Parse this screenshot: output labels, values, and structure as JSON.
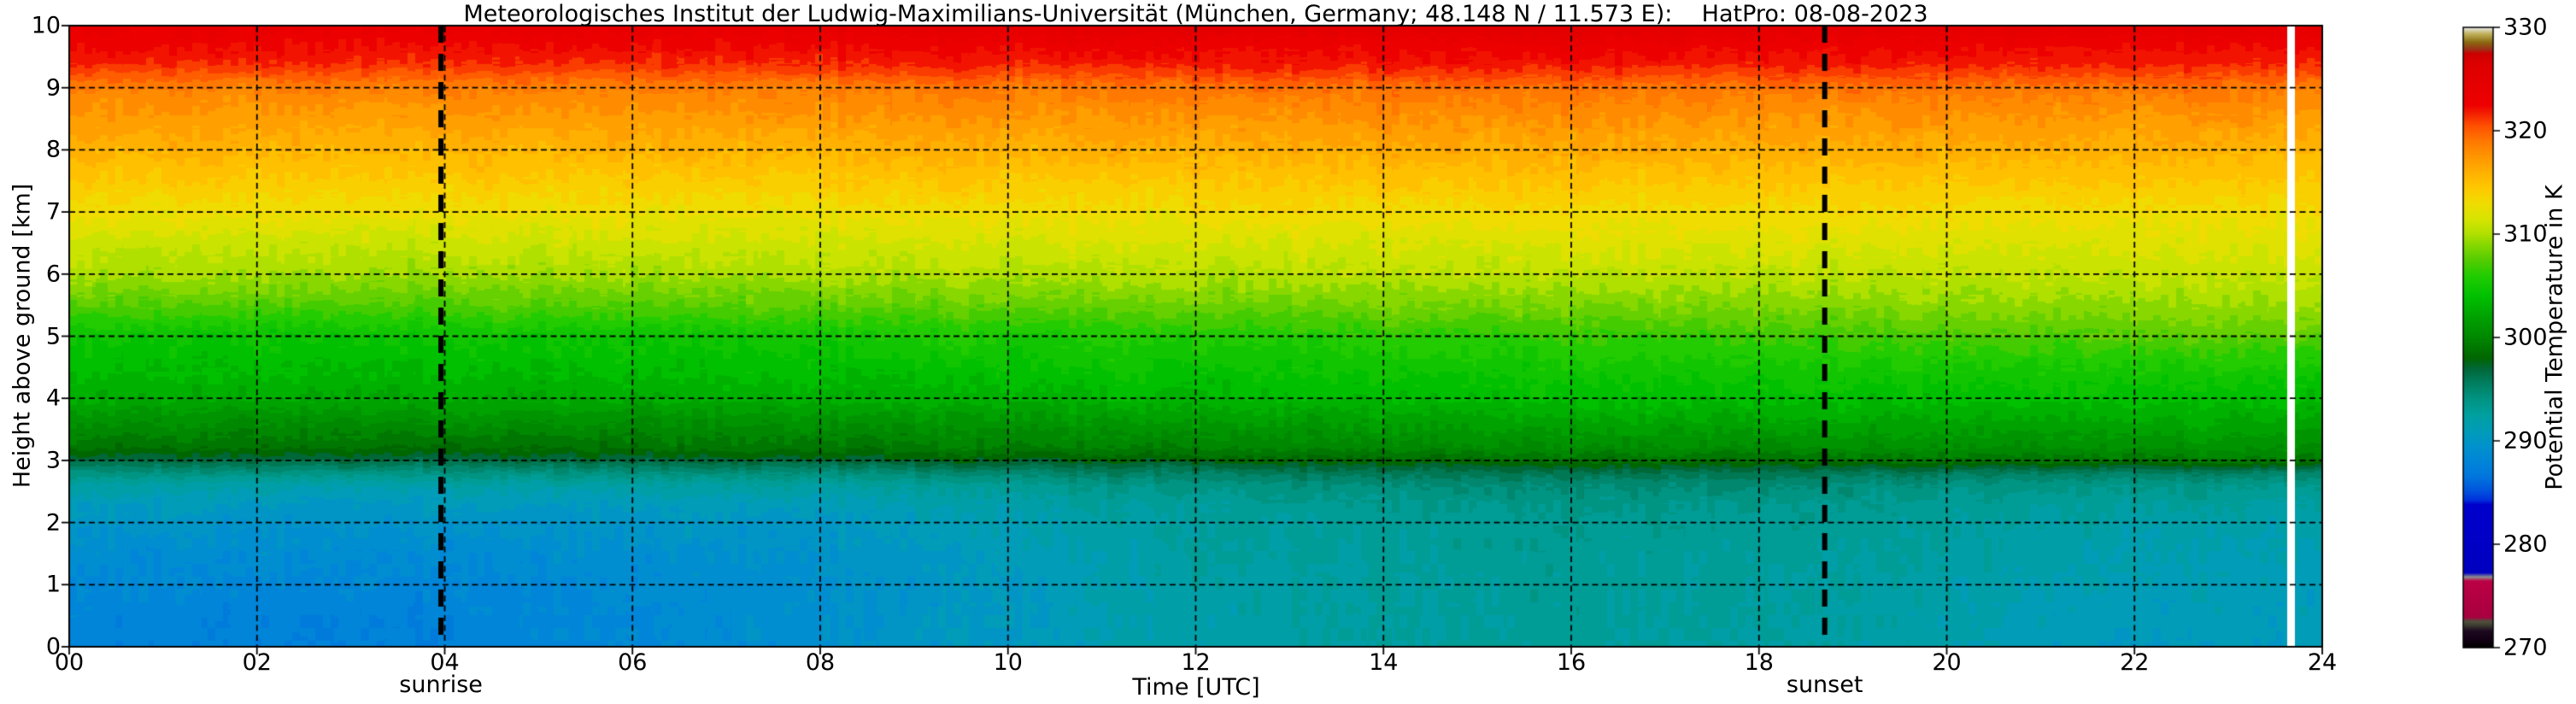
{
  "title": "Meteorologisches Institut der Ludwig-Maximilians-Universität (München, Germany; 48.148 N / 11.573 E):    HatPro: 08-08-2023",
  "background": "#ffffff",
  "plot": {
    "xlabel": "Time [UTC]",
    "ylabel": "Height above ground [km]",
    "x_ticks": [
      "00",
      "02",
      "04",
      "06",
      "08",
      "10",
      "12",
      "14",
      "16",
      "18",
      "20",
      "22",
      "24"
    ],
    "y_ticks": [
      "0",
      "1",
      "2",
      "3",
      "4",
      "5",
      "6",
      "7",
      "8",
      "9",
      "10"
    ],
    "grid": {
      "color": "#000000",
      "style": "dashed"
    },
    "annotations": {
      "sunrise": {
        "label": "sunrise",
        "time_utc": 3.96
      },
      "sunset": {
        "label": "sunset",
        "time_utc": 18.7
      }
    }
  },
  "colorbar": {
    "label": "Potential Temperature in K",
    "tick_labels": [
      "270",
      "280",
      "290",
      "300",
      "310",
      "320",
      "330"
    ],
    "min": 270,
    "max": 330
  },
  "chart_data": {
    "type": "heatmap",
    "title": "Potential temperature time-height cross-section from HatPro microwave radiometer",
    "xlabel": "Time [UTC]",
    "ylabel": "Height above ground [km]",
    "xlim": [
      0,
      24
    ],
    "ylim": [
      0,
      10
    ],
    "value_label": "Potential Temperature in K",
    "vlim": [
      270,
      330
    ],
    "sunrise_utc": 3.96,
    "sunset_utc": 18.7,
    "data_gap_utc": [
      23.63,
      23.71
    ],
    "times": [
      0,
      4,
      8,
      12,
      16,
      19,
      22,
      24
    ],
    "heights": [
      0,
      0.5,
      1,
      1.5,
      2,
      2.3,
      2.6,
      2.8,
      3,
      3.2,
      3.5,
      4,
      4.5,
      5,
      5.5,
      6,
      6.5,
      7,
      7.5,
      8,
      8.5,
      9,
      9.2,
      9.4,
      9.6,
      9.8,
      10
    ],
    "theta": [
      [
        287.8,
        288.0,
        288.4,
        289.0,
        289.9,
        290.7,
        292.2,
        294.3,
        296.8,
        298.7,
        300.1,
        302.6,
        303.7,
        304.6,
        307.4,
        309.7,
        311.0,
        312.8,
        314.4,
        315.8,
        317.2,
        318.6,
        320.1,
        321.6,
        322.4,
        323.1,
        323.8
      ],
      [
        287.6,
        287.8,
        288.2,
        288.8,
        289.7,
        290.5,
        292.0,
        294.1,
        296.6,
        298.5,
        299.9,
        302.5,
        303.6,
        304.6,
        307.3,
        309.6,
        311.0,
        312.7,
        314.3,
        315.7,
        317.1,
        318.5,
        320.0,
        321.5,
        322.3,
        323.0,
        323.9
      ],
      [
        289.2,
        289.2,
        289.3,
        289.6,
        290.3,
        291.1,
        292.5,
        294.5,
        297.0,
        298.9,
        300.3,
        302.8,
        304.0,
        305.1,
        307.7,
        309.9,
        311.2,
        312.9,
        314.5,
        315.9,
        317.3,
        318.7,
        320.3,
        321.7,
        322.5,
        323.3,
        324.6
      ],
      [
        292.0,
        292.0,
        292.1,
        292.3,
        292.6,
        293.0,
        294.0,
        295.6,
        297.9,
        299.6,
        301.0,
        303.3,
        304.6,
        305.8,
        308.1,
        310.2,
        311.5,
        313.1,
        314.6,
        316.1,
        317.5,
        319.1,
        320.7,
        322.0,
        322.7,
        323.7,
        325.5
      ],
      [
        292.8,
        292.8,
        292.9,
        293.0,
        293.3,
        293.7,
        294.7,
        296.2,
        298.5,
        300.2,
        301.6,
        303.8,
        305.1,
        306.4,
        308.6,
        310.4,
        311.7,
        313.2,
        314.7,
        316.2,
        317.6,
        319.2,
        320.8,
        322.1,
        322.8,
        323.8,
        325.5
      ],
      [
        292.2,
        292.3,
        292.5,
        292.7,
        293.0,
        293.4,
        294.4,
        296.0,
        298.8,
        300.4,
        301.8,
        303.9,
        305.3,
        307.0,
        308.9,
        310.6,
        311.8,
        313.2,
        314.7,
        316.1,
        317.5,
        319.1,
        320.6,
        322.0,
        322.7,
        323.6,
        325.0
      ],
      [
        290.6,
        290.8,
        291.2,
        291.6,
        292.1,
        292.7,
        293.9,
        295.7,
        299.2,
        300.7,
        301.9,
        303.9,
        305.5,
        307.6,
        309.3,
        310.8,
        311.9,
        313.2,
        314.6,
        316.0,
        317.4,
        319.0,
        320.5,
        321.8,
        322.5,
        323.6,
        325.0
      ],
      [
        290.8,
        290.9,
        291.1,
        291.4,
        291.9,
        292.5,
        293.7,
        295.5,
        299.1,
        300.6,
        301.8,
        303.8,
        305.4,
        307.6,
        309.3,
        310.8,
        311.9,
        313.1,
        314.5,
        315.9,
        317.3,
        318.9,
        320.4,
        321.7,
        322.4,
        323.5,
        324.8
      ]
    ],
    "colormap_stops": [
      [
        270.0,
        "#000000"
      ],
      [
        270.7,
        "#120014"
      ],
      [
        271.6,
        "#1e0a20"
      ],
      [
        272.1,
        "#3c3c30"
      ],
      [
        272.5,
        "#50503e"
      ],
      [
        272.9,
        "#a80040"
      ],
      [
        276.4,
        "#bb0044"
      ],
      [
        276.8,
        "#909090"
      ],
      [
        277.2,
        "#0000c0"
      ],
      [
        283.8,
        "#0000cc"
      ],
      [
        284.3,
        "#0033dd"
      ],
      [
        285.2,
        "#0055dd"
      ],
      [
        286.6,
        "#0077dd"
      ],
      [
        288.0,
        "#0085d8"
      ],
      [
        289.5,
        "#0092cc"
      ],
      [
        291.0,
        "#009cb8"
      ],
      [
        292.5,
        "#00a0a0"
      ],
      [
        294.0,
        "#009483"
      ],
      [
        295.5,
        "#008062"
      ],
      [
        297.0,
        "#006738"
      ],
      [
        298.0,
        "#006600"
      ],
      [
        300.0,
        "#008800"
      ],
      [
        302.0,
        "#00a200"
      ],
      [
        304.0,
        "#00c000"
      ],
      [
        306.0,
        "#22cc00"
      ],
      [
        307.5,
        "#55cc00"
      ],
      [
        309.0,
        "#88d800"
      ],
      [
        310.0,
        "#b0e000"
      ],
      [
        311.5,
        "#d8e400"
      ],
      [
        313.0,
        "#f0dc00"
      ],
      [
        314.5,
        "#ffc800"
      ],
      [
        316.0,
        "#ffb000"
      ],
      [
        317.5,
        "#ff9600"
      ],
      [
        319.0,
        "#ff7800"
      ],
      [
        320.5,
        "#ff5000"
      ],
      [
        321.5,
        "#f52800"
      ],
      [
        322.5,
        "#ee0000"
      ],
      [
        326.5,
        "#dd0000"
      ],
      [
        327.5,
        "#cc0000"
      ],
      [
        327.9,
        "#9c3018"
      ],
      [
        328.6,
        "#8a6a10"
      ],
      [
        329.4,
        "#c0b05a"
      ],
      [
        330.0,
        "#e6e6e6"
      ]
    ]
  }
}
